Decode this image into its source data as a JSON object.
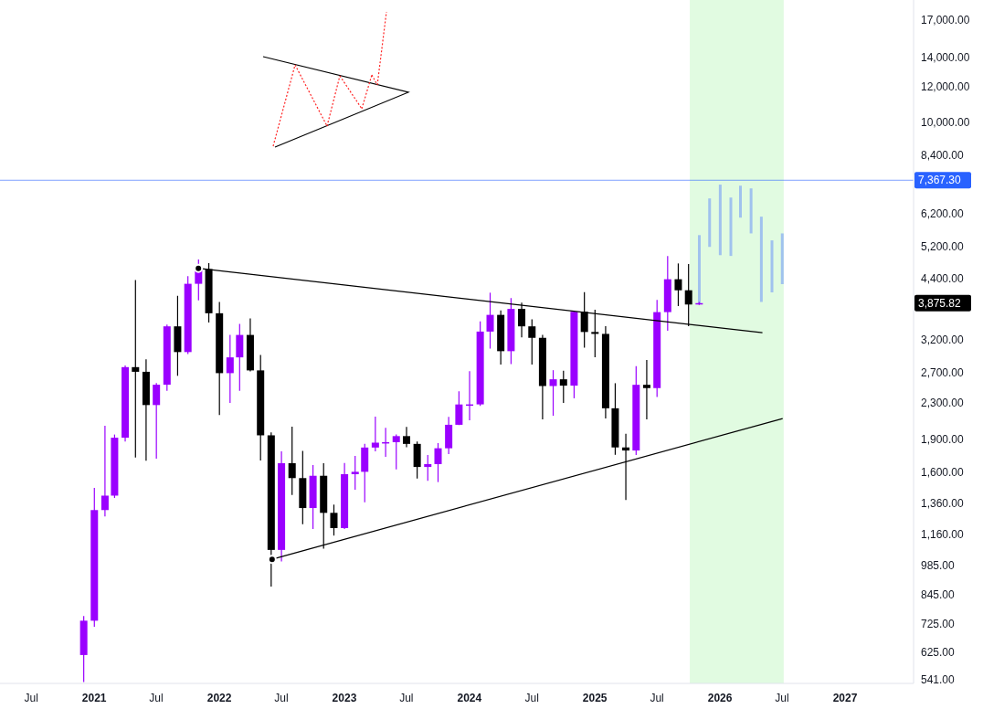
{
  "chart_data": {
    "type": "candlestick",
    "log": true,
    "x": [
      "2020-12",
      "2021-01",
      "2021-02",
      "2021-03",
      "2021-04",
      "2021-05",
      "2021-06",
      "2021-07",
      "2021-08",
      "2021-09",
      "2021-10",
      "2021-11",
      "2021-12",
      "2022-01",
      "2022-02",
      "2022-03",
      "2022-04",
      "2022-05",
      "2022-06",
      "2022-07",
      "2022-08",
      "2022-09",
      "2022-10",
      "2022-11",
      "2022-12",
      "2023-01",
      "2023-02",
      "2023-03",
      "2023-04",
      "2023-05",
      "2023-06",
      "2023-07",
      "2023-08",
      "2023-09",
      "2023-10",
      "2023-11",
      "2023-12",
      "2024-01",
      "2024-02",
      "2024-03",
      "2024-04",
      "2024-05",
      "2024-06",
      "2024-07",
      "2024-08",
      "2024-09",
      "2024-10",
      "2024-11",
      "2024-12",
      "2025-01",
      "2025-02",
      "2025-03",
      "2025-04",
      "2025-05",
      "2025-06",
      "2025-07",
      "2025-08",
      "2025-09",
      "2025-10",
      "2025-11"
    ],
    "ohlc": [
      [
        616,
        755,
        535,
        737
      ],
      [
        737,
        1476,
        714,
        1314
      ],
      [
        1314,
        2041,
        1271,
        1417
      ],
      [
        1417,
        1950,
        1400,
        1918
      ],
      [
        1918,
        2797,
        1880,
        2774
      ],
      [
        2774,
        4372,
        1729,
        2707
      ],
      [
        2707,
        2891,
        1700,
        2275
      ],
      [
        2275,
        2552,
        1719,
        2530
      ],
      [
        2530,
        3466,
        2451,
        3433
      ],
      [
        3433,
        4027,
        2651,
        3001
      ],
      [
        3001,
        4460,
        2969,
        4288
      ],
      [
        4288,
        4868,
        3930,
        4631
      ],
      [
        4631,
        4778,
        3503,
        3676
      ],
      [
        3676,
        3900,
        2159,
        2688
      ],
      [
        2688,
        3282,
        2300,
        2919
      ],
      [
        2919,
        3479,
        2450,
        3282
      ],
      [
        3282,
        3580,
        2712,
        2727
      ],
      [
        2727,
        2955,
        1703,
        1942
      ],
      [
        1942,
        1972,
        881,
        1067
      ],
      [
        1067,
        1785,
        1005,
        1679
      ],
      [
        1679,
        2031,
        1422,
        1553
      ],
      [
        1553,
        1790,
        1221,
        1328
      ],
      [
        1328,
        1663,
        1190,
        1572
      ],
      [
        1572,
        1679,
        1074,
        1295
      ],
      [
        1295,
        1352,
        1150,
        1196
      ],
      [
        1196,
        1680,
        1190,
        1585
      ],
      [
        1585,
        1743,
        1461,
        1605
      ],
      [
        1605,
        1857,
        1368,
        1822
      ],
      [
        1822,
        2141,
        1786,
        1869
      ],
      [
        1869,
        2019,
        1736,
        1874
      ],
      [
        1874,
        1950,
        1626,
        1934
      ],
      [
        1934,
        2030,
        1825,
        1857
      ],
      [
        1857,
        1880,
        1550,
        1646
      ],
      [
        1646,
        1752,
        1531,
        1671
      ],
      [
        1671,
        1865,
        1521,
        1815
      ],
      [
        1815,
        2139,
        1760,
        2052
      ],
      [
        2052,
        2445,
        2050,
        2282
      ],
      [
        2282,
        2717,
        2100,
        2283
      ],
      [
        2283,
        3523,
        2266,
        3340
      ],
      [
        3340,
        4093,
        3056,
        3645
      ],
      [
        3645,
        3730,
        2812,
        3015
      ],
      [
        3015,
        3977,
        2817,
        3760
      ],
      [
        3760,
        3887,
        3240,
        3433
      ],
      [
        3433,
        3563,
        2810,
        3233
      ],
      [
        3233,
        3282,
        2111,
        2513
      ],
      [
        2513,
        2730,
        2151,
        2603
      ],
      [
        2603,
        2722,
        2300,
        2518
      ],
      [
        2518,
        3720,
        2357,
        3705
      ],
      [
        3705,
        4107,
        3070,
        3333
      ],
      [
        3333,
        3745,
        2920,
        3300
      ],
      [
        3300,
        3437,
        2120,
        2237
      ],
      [
        2237,
        2550,
        1754,
        1823
      ],
      [
        1823,
        1957,
        1385,
        1794
      ],
      [
        1794,
        2788,
        1752,
        2529
      ],
      [
        2529,
        2880,
        2111,
        2486
      ],
      [
        2486,
        3941,
        2373,
        3698
      ],
      [
        3698,
        4957,
        3355,
        4391
      ],
      [
        4391,
        4769,
        3816,
        4145
      ],
      [
        4145,
        4755,
        3435,
        3848
      ],
      [
        3848,
        3900,
        3840,
        3875.82
      ]
    ],
    "colors": [
      "#9a00ff",
      "#9a00ff",
      "#9a00ff",
      "#9a00ff",
      "#9a00ff",
      "#000000",
      "#000000",
      "#9a00ff",
      "#9a00ff",
      "#000000",
      "#9a00ff",
      "#9a00ff",
      "#000000",
      "#000000",
      "#9a00ff",
      "#9a00ff",
      "#000000",
      "#000000",
      "#000000",
      "#9a00ff",
      "#000000",
      "#000000",
      "#9a00ff",
      "#000000",
      "#000000",
      "#9a00ff",
      "#9a00ff",
      "#9a00ff",
      "#9a00ff",
      "#9a00ff",
      "#9a00ff",
      "#000000",
      "#000000",
      "#9a00ff",
      "#9a00ff",
      "#9a00ff",
      "#9a00ff",
      "#9a00ff",
      "#9a00ff",
      "#9a00ff",
      "#000000",
      "#9a00ff",
      "#000000",
      "#000000",
      "#000000",
      "#9a00ff",
      "#000000",
      "#9a00ff",
      "#000000",
      "#000000",
      "#000000",
      "#000000",
      "#000000",
      "#9a00ff",
      "#000000",
      "#9a00ff",
      "#9a00ff",
      "#000000",
      "#000000",
      "#9a00ff"
    ],
    "series": [
      {
        "type": "bar",
        "color": "#a0c2ee",
        "x": [
          "2025-11",
          "2025-12",
          "2026-01",
          "2026-02",
          "2026-03",
          "2026-04",
          "2026-05",
          "2026-06",
          "2026-07"
        ],
        "base": [
          3870,
          5200,
          4980,
          4960,
          6060,
          5580,
          3900,
          4100,
          4280
        ],
        "values": [
          1660,
          1500,
          2220,
          1770,
          1100,
          1480,
          2190,
          1280,
          1300
        ]
      },
      {
        "type": "line",
        "color": "#000000",
        "x": [
          "2021-11",
          "2026-05-05"
        ],
        "values": [
          4650,
          3320
        ]
      },
      {
        "type": "line",
        "color": "#000000",
        "x": [
          "2022-06-04",
          "2026-07-03"
        ],
        "values": [
          1016,
          2120
        ]
      }
    ],
    "xlim": [
      "2020-04-01",
      "2027-07-20"
    ],
    "xticks": [
      {
        "value": "2020-07",
        "label": "Jul"
      },
      {
        "value": "2021",
        "label": "2021"
      },
      {
        "value": "2021-07",
        "label": "Jul"
      },
      {
        "value": "2022",
        "label": "2022"
      },
      {
        "value": "2022-07",
        "label": "Jul"
      },
      {
        "value": "2023",
        "label": "2023"
      },
      {
        "value": "2023-07",
        "label": "Jul"
      },
      {
        "value": "2024",
        "label": "2024"
      },
      {
        "value": "2024-07",
        "label": "Jul"
      },
      {
        "value": "2025",
        "label": "2025"
      },
      {
        "value": "2025-07",
        "label": "Jul"
      },
      {
        "value": "2026",
        "label": "2026"
      },
      {
        "value": "2026-07",
        "label": "Jul"
      },
      {
        "value": "2027",
        "label": "2027"
      }
    ],
    "ylim": [
      531,
      18900
    ],
    "yticks": [
      {
        "value": 541,
        "label": "541.00"
      },
      {
        "value": 625,
        "label": "625.00"
      },
      {
        "value": 725,
        "label": "725.00"
      },
      {
        "value": 845,
        "label": "845.00"
      },
      {
        "value": 985,
        "label": "985.00"
      },
      {
        "value": 1160,
        "label": "1,160.00"
      },
      {
        "value": 1360,
        "label": "1,360.00"
      },
      {
        "value": 1600,
        "label": "1,600.00"
      },
      {
        "value": 1900,
        "label": "1,900.00"
      },
      {
        "value": 2300,
        "label": "2,300.00"
      },
      {
        "value": 2700,
        "label": "2,700.00"
      },
      {
        "value": 3200,
        "label": "3,200.00"
      },
      {
        "value": 4400,
        "label": "4,400.00"
      },
      {
        "value": 5200,
        "label": "5,200.00"
      },
      {
        "value": 6200,
        "label": "6,200.00"
      },
      {
        "value": 8400,
        "label": "8,400.00"
      },
      {
        "value": 10000,
        "label": "10,000.00"
      },
      {
        "value": 12000,
        "label": "12,000.00"
      },
      {
        "value": 14000,
        "label": "14,000.00"
      },
      {
        "value": 17000,
        "label": "17,000.00"
      }
    ],
    "bands": [
      {
        "axis": "x",
        "from": "2025-10-05",
        "to": "2026-07-06",
        "color": "#e1fbe1"
      }
    ],
    "ref_lines": [
      {
        "axis": "y",
        "value": 7367.3,
        "label": "7,367.30",
        "color": "#2962ff"
      }
    ],
    "annotations": [
      "3,875.82"
    ]
  }
}
